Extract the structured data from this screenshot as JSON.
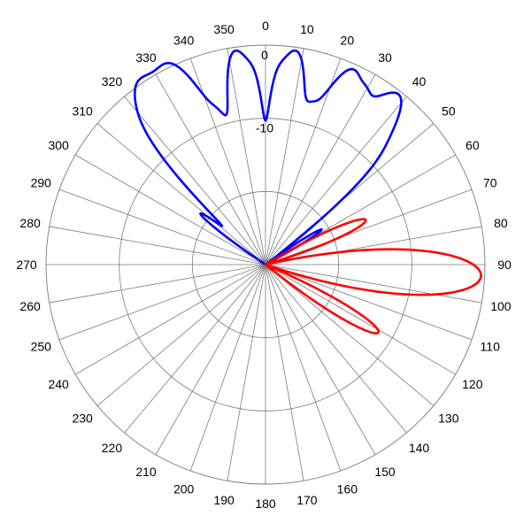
{
  "chart_data": {
    "type": "polar-line",
    "theta_direction": "clockwise",
    "theta_zero": "top",
    "angle_tick_labels": [
      "0",
      "10",
      "20",
      "30",
      "40",
      "50",
      "60",
      "70",
      "80",
      "90",
      "100",
      "110",
      "120",
      "130",
      "140",
      "150",
      "160",
      "170",
      "180",
      "190",
      "200",
      "210",
      "220",
      "230",
      "240",
      "250",
      "260",
      "270",
      "280",
      "290",
      "300",
      "310",
      "320",
      "330",
      "340",
      "350"
    ],
    "radial_tick_labels": [
      "0",
      "-10"
    ],
    "rlim_db": [
      -30,
      0
    ],
    "grid": true,
    "series": [
      {
        "color": "#0000ff",
        "main_lobes": [
          {
            "angle": -35,
            "peak_db": 0.0,
            "beamwidth": 12
          },
          {
            "angle": -25,
            "peak_db": -1.0,
            "beamwidth": 10
          },
          {
            "angle": -8,
            "peak_db": -0.5,
            "beamwidth": 9
          },
          {
            "angle": 8,
            "peak_db": -0.5,
            "beamwidth": 9
          },
          {
            "angle": 24,
            "peak_db": -1.0,
            "beamwidth": 10
          },
          {
            "angle": 38,
            "peak_db": -0.5,
            "beamwidth": 12
          }
        ],
        "side_lobes": [
          {
            "angle": -52,
            "peak_db": -19,
            "beamwidth": 6
          },
          {
            "angle": -42,
            "peak_db": -17,
            "beamwidth": 6
          },
          {
            "angle": -17,
            "peak_db": -14,
            "beamwidth": 5
          },
          {
            "angle": -3,
            "peak_db": -13,
            "beamwidth": 4
          },
          {
            "angle": 3,
            "peak_db": -13,
            "beamwidth": 4
          },
          {
            "angle": 16,
            "peak_db": -14,
            "beamwidth": 5
          },
          {
            "angle": 30,
            "peak_db": -15,
            "beamwidth": 5
          },
          {
            "angle": 47,
            "peak_db": -17,
            "beamwidth": 6
          },
          {
            "angle": 58,
            "peak_db": -21,
            "beamwidth": 6
          }
        ]
      },
      {
        "color": "#ff0000",
        "main_lobes": [
          {
            "angle": 93,
            "peak_db": -0.5,
            "beamwidth": 14
          },
          {
            "angle": 66,
            "peak_db": -15,
            "beamwidth": 9
          },
          {
            "angle": 121,
            "peak_db": -12,
            "beamwidth": 9
          }
        ],
        "side_lobes": []
      }
    ]
  }
}
